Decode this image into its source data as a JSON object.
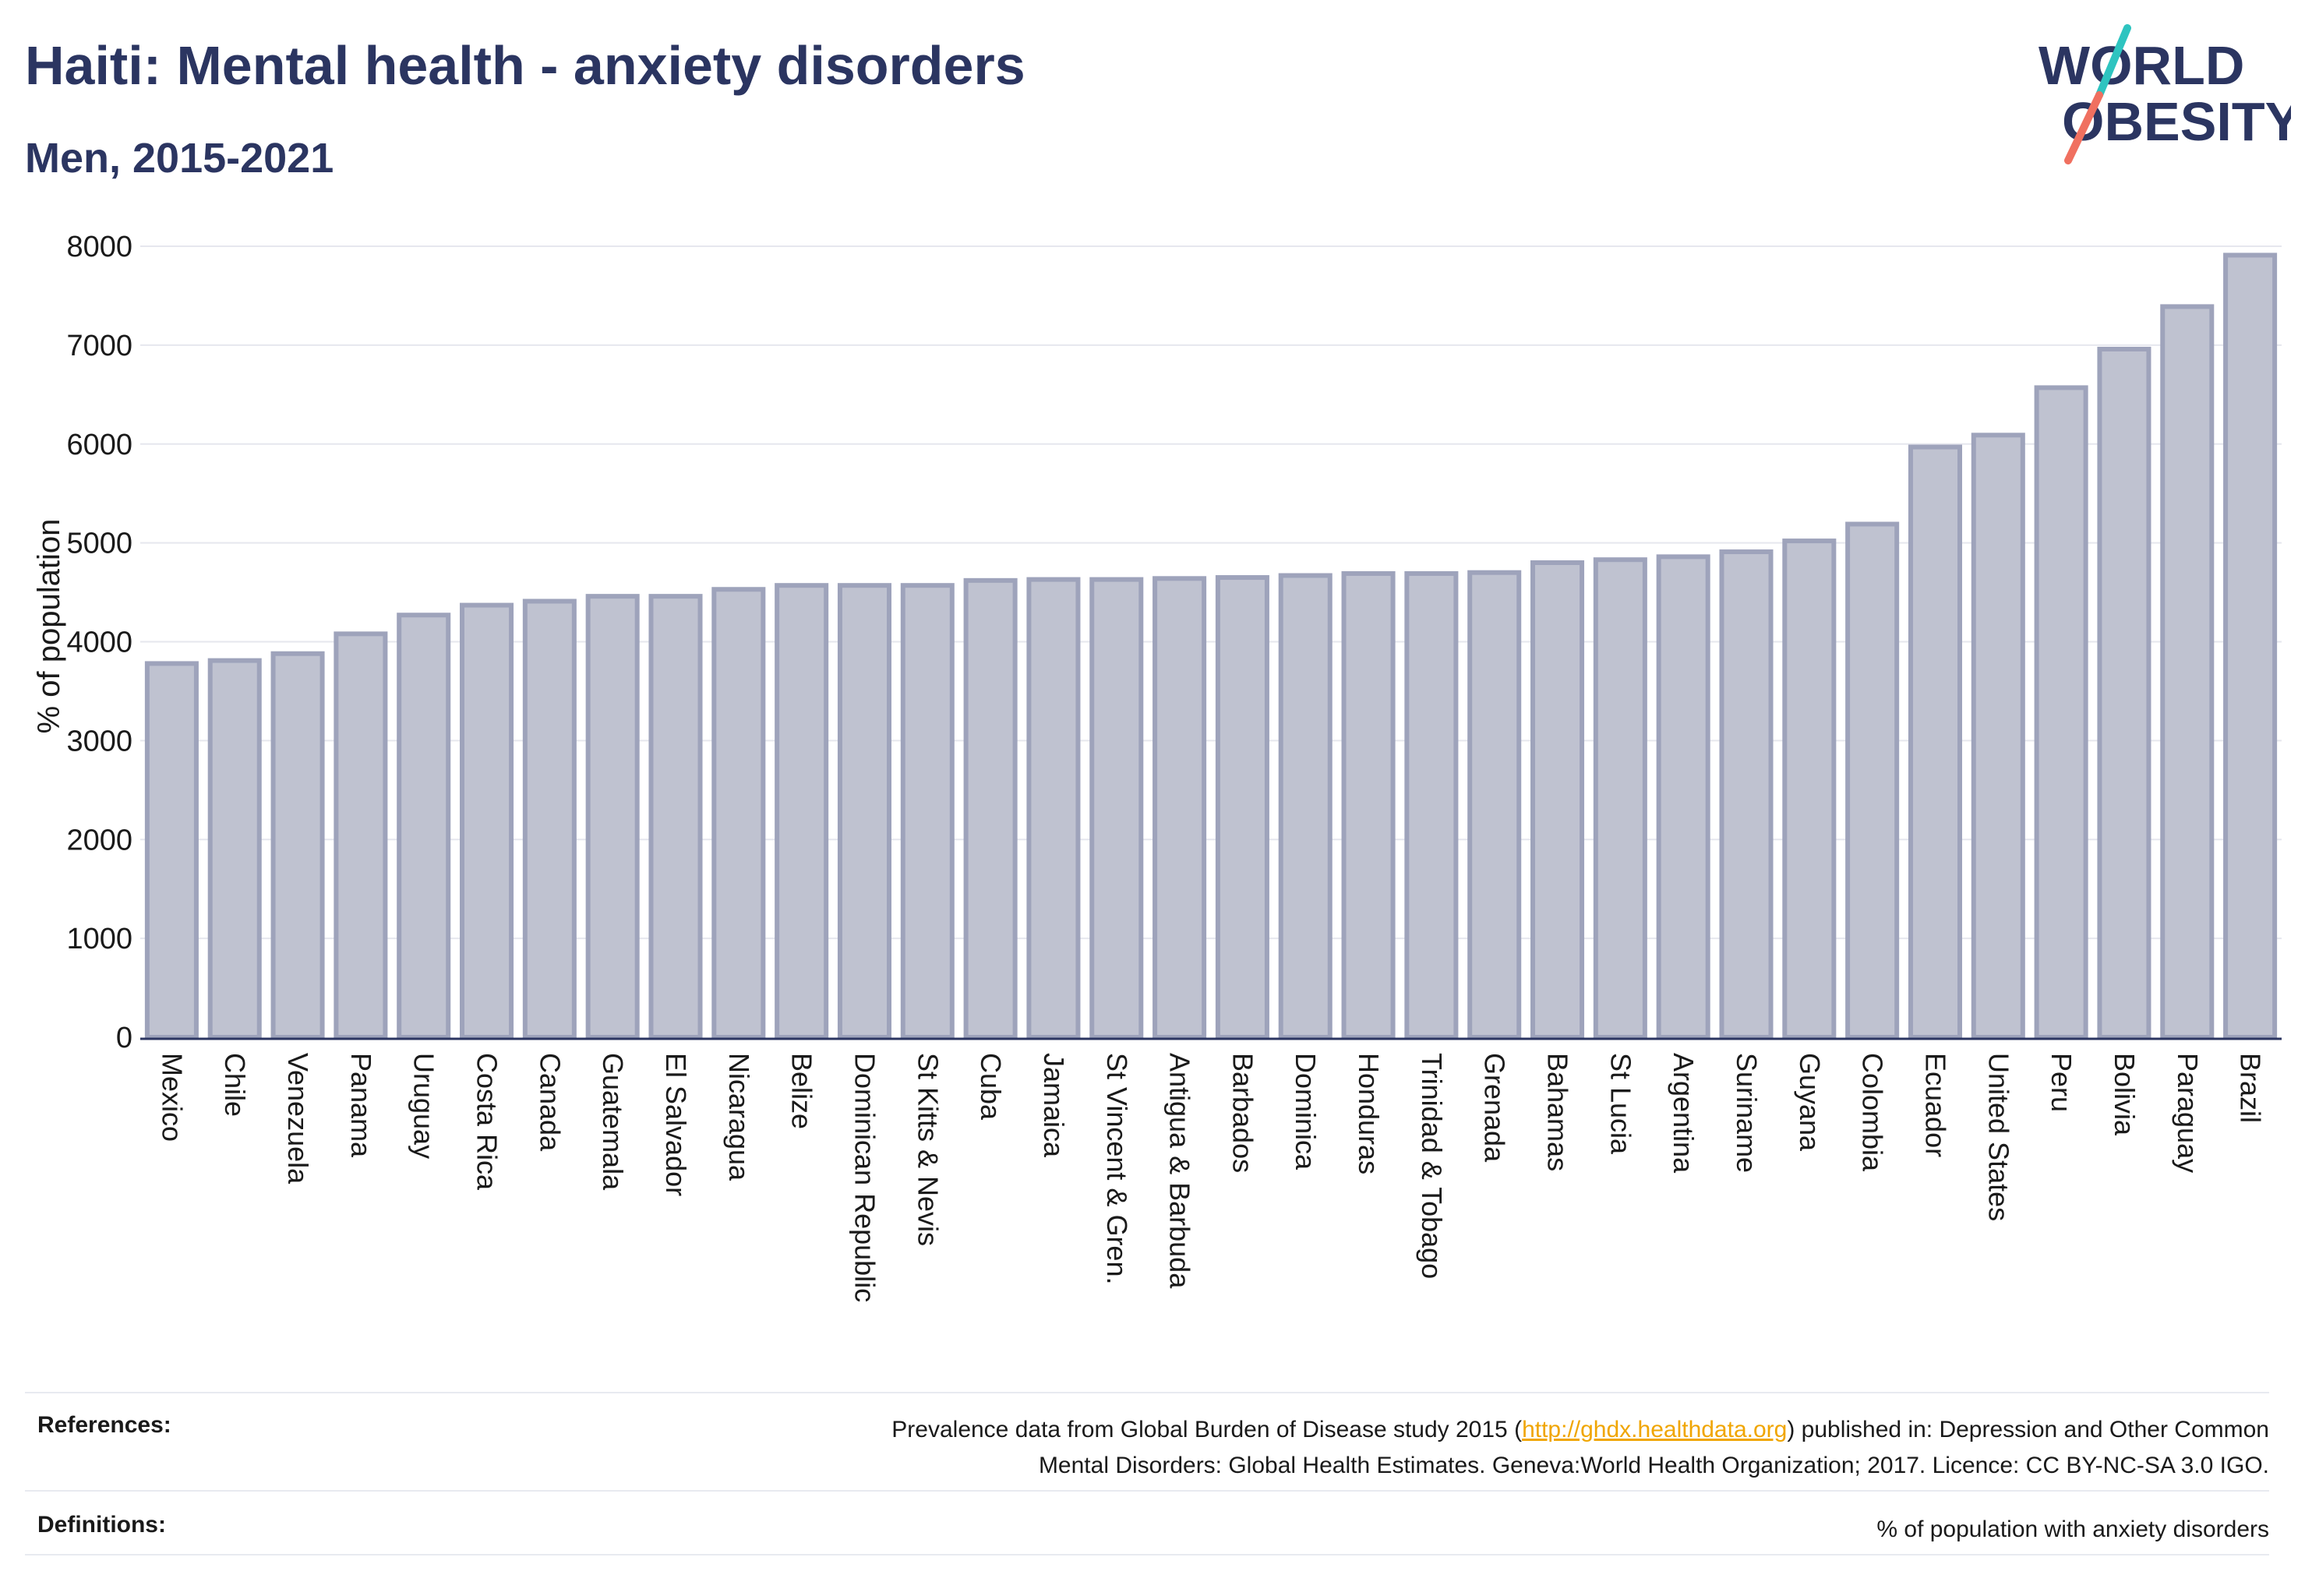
{
  "header": {
    "title": "Haiti: Mental health - anxiety disorders",
    "subtitle": "Men, 2015-2021"
  },
  "logo": {
    "line1": "WORLD",
    "line2": "OBESITY",
    "colors": {
      "text": "#2b3561",
      "slash_teal": "#2ec4c0",
      "slash_coral": "#f07060"
    }
  },
  "chart_data": {
    "type": "bar",
    "ylabel": "% of population",
    "ylim": [
      0,
      8000
    ],
    "yticks": [
      0,
      1000,
      2000,
      3000,
      4000,
      5000,
      6000,
      7000,
      8000
    ],
    "grid": true,
    "bar_fill": "#bfc2d0",
    "bar_stroke": "#9ea3bb",
    "categories": [
      "Mexico",
      "Chile",
      "Venezuela",
      "Panama",
      "Uruguay",
      "Costa Rica",
      "Canada",
      "Guatemala",
      "El Salvador",
      "Nicaragua",
      "Belize",
      "Dominican Republic",
      "St Kitts & Nevis",
      "Cuba",
      "Jamaica",
      "St Vincent & Gren.",
      "Antigua & Barbuda",
      "Barbados",
      "Dominica",
      "Honduras",
      "Trinidad & Tobago",
      "Grenada",
      "Bahamas",
      "St Lucia",
      "Argentina",
      "Suriname",
      "Guyana",
      "Colombia",
      "Ecuador",
      "United States",
      "Peru",
      "Bolivia",
      "Paraguay",
      "Brazil"
    ],
    "values": [
      3780,
      3810,
      3880,
      4080,
      4270,
      4370,
      4410,
      4460,
      4460,
      4530,
      4570,
      4570,
      4570,
      4620,
      4630,
      4630,
      4640,
      4650,
      4670,
      4690,
      4690,
      4700,
      4800,
      4830,
      4860,
      4910,
      5020,
      5190,
      5970,
      6090,
      6570,
      6960,
      7390,
      7910
    ]
  },
  "footer": {
    "references_label": "References:",
    "references_text_before": "Prevalence data from Global Burden of Disease study 2015 (",
    "references_link": "http://ghdx.healthdata.org",
    "references_text_after": ") published in: Depression and Other Common",
    "references_line2": "Mental Disorders: Global Health Estimates. Geneva:World Health Organization; 2017. Licence: CC BY-NC-SA 3.0 IGO.",
    "definitions_label": "Definitions:",
    "definitions_text": "% of population with anxiety disorders"
  }
}
